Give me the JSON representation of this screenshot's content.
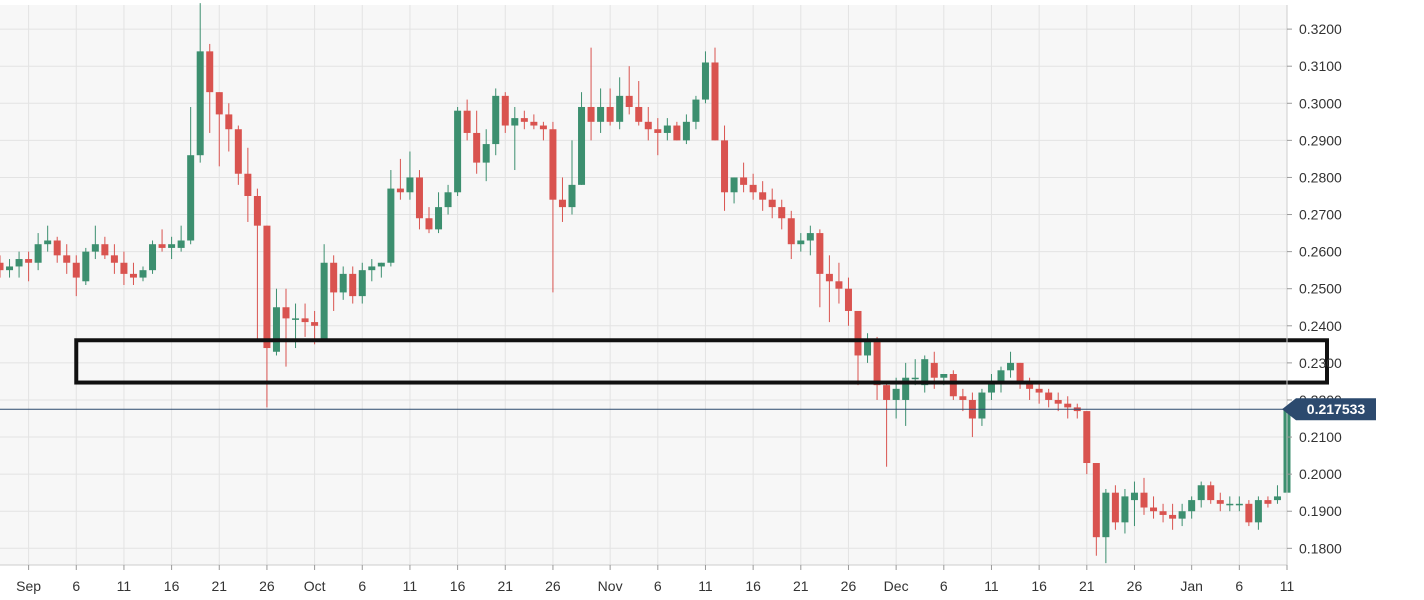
{
  "chart_data": {
    "type": "candlestick",
    "title": "",
    "xlabel": "",
    "ylabel": "",
    "ylim": [
      0.1755,
      0.3265
    ],
    "xlim": [
      "2019-08-29",
      "2020-01-11"
    ],
    "grid": true,
    "y_axis_position": "right",
    "y_ticks": [
      "0.3200",
      "0.3100",
      "0.3000",
      "0.2900",
      "0.2800",
      "0.2700",
      "0.2600",
      "0.2500",
      "0.2400",
      "0.2300",
      "0.2200",
      "0.2100",
      "0.2000",
      "0.1900",
      "0.1800"
    ],
    "x_ticks": [
      {
        "date": "2019-09-01",
        "label": "Sep"
      },
      {
        "date": "2019-09-06",
        "label": "6"
      },
      {
        "date": "2019-09-11",
        "label": "11"
      },
      {
        "date": "2019-09-16",
        "label": "16"
      },
      {
        "date": "2019-09-21",
        "label": "21"
      },
      {
        "date": "2019-09-26",
        "label": "26"
      },
      {
        "date": "2019-10-01",
        "label": "Oct"
      },
      {
        "date": "2019-10-06",
        "label": "6"
      },
      {
        "date": "2019-10-11",
        "label": "11"
      },
      {
        "date": "2019-10-16",
        "label": "16"
      },
      {
        "date": "2019-10-21",
        "label": "21"
      },
      {
        "date": "2019-10-26",
        "label": "26"
      },
      {
        "date": "2019-11-01",
        "label": "Nov"
      },
      {
        "date": "2019-11-06",
        "label": "6"
      },
      {
        "date": "2019-11-11",
        "label": "11"
      },
      {
        "date": "2019-11-16",
        "label": "16"
      },
      {
        "date": "2019-11-21",
        "label": "21"
      },
      {
        "date": "2019-11-26",
        "label": "26"
      },
      {
        "date": "2019-12-01",
        "label": "Dec"
      },
      {
        "date": "2019-12-06",
        "label": "6"
      },
      {
        "date": "2019-12-11",
        "label": "11"
      },
      {
        "date": "2019-12-16",
        "label": "16"
      },
      {
        "date": "2019-12-21",
        "label": "21"
      },
      {
        "date": "2019-12-26",
        "label": "26"
      },
      {
        "date": "2020-01-01",
        "label": "Jan"
      },
      {
        "date": "2020-01-06",
        "label": "6"
      },
      {
        "date": "2020-01-11",
        "label": "11"
      }
    ],
    "start_date": "2019-08-29",
    "colors": {
      "up": "#3c8f6f",
      "down": "#d9534f",
      "current_line": "#2c4a6e",
      "tag_bg": "#2c4a6e",
      "zone": "#111111",
      "grid": "#e3e3e3",
      "plot_bg": "#f7f7f7"
    },
    "current_price": {
      "value": 0.2175,
      "label": "0.217533"
    },
    "zone": {
      "x_start": "2019-09-06",
      "y_low": 0.2247,
      "y_high": 0.2361
    },
    "candles": [
      [
        0.257,
        0.259,
        0.253,
        0.255
      ],
      [
        0.255,
        0.258,
        0.253,
        0.256
      ],
      [
        0.256,
        0.26,
        0.253,
        0.258
      ],
      [
        0.258,
        0.26,
        0.252,
        0.257
      ],
      [
        0.257,
        0.265,
        0.255,
        0.262
      ],
      [
        0.262,
        0.267,
        0.26,
        0.263
      ],
      [
        0.263,
        0.264,
        0.257,
        0.259
      ],
      [
        0.259,
        0.262,
        0.254,
        0.257
      ],
      [
        0.257,
        0.259,
        0.248,
        0.253
      ],
      [
        0.252,
        0.261,
        0.251,
        0.26
      ],
      [
        0.26,
        0.267,
        0.258,
        0.262
      ],
      [
        0.262,
        0.264,
        0.258,
        0.259
      ],
      [
        0.259,
        0.262,
        0.254,
        0.257
      ],
      [
        0.257,
        0.26,
        0.251,
        0.254
      ],
      [
        0.254,
        0.257,
        0.251,
        0.253
      ],
      [
        0.253,
        0.256,
        0.252,
        0.255
      ],
      [
        0.255,
        0.263,
        0.254,
        0.262
      ],
      [
        0.262,
        0.266,
        0.26,
        0.261
      ],
      [
        0.261,
        0.264,
        0.258,
        0.262
      ],
      [
        0.261,
        0.267,
        0.26,
        0.263
      ],
      [
        0.263,
        0.299,
        0.262,
        0.286
      ],
      [
        0.286,
        0.327,
        0.284,
        0.314
      ],
      [
        0.314,
        0.316,
        0.292,
        0.303
      ],
      [
        0.303,
        0.303,
        0.283,
        0.297
      ],
      [
        0.297,
        0.3,
        0.287,
        0.293
      ],
      [
        0.293,
        0.294,
        0.278,
        0.281
      ],
      [
        0.281,
        0.288,
        0.268,
        0.275
      ],
      [
        0.275,
        0.277,
        0.236,
        0.267
      ],
      [
        0.267,
        0.267,
        0.218,
        0.234
      ],
      [
        0.233,
        0.25,
        0.232,
        0.245
      ],
      [
        0.245,
        0.25,
        0.229,
        0.242
      ],
      [
        0.242,
        0.246,
        0.234,
        0.242
      ],
      [
        0.242,
        0.246,
        0.237,
        0.241
      ],
      [
        0.241,
        0.244,
        0.235,
        0.24
      ],
      [
        0.236,
        0.262,
        0.236,
        0.257
      ],
      [
        0.257,
        0.259,
        0.244,
        0.249
      ],
      [
        0.249,
        0.256,
        0.247,
        0.254
      ],
      [
        0.254,
        0.256,
        0.246,
        0.248
      ],
      [
        0.248,
        0.257,
        0.246,
        0.255
      ],
      [
        0.255,
        0.258,
        0.252,
        0.256
      ],
      [
        0.256,
        0.257,
        0.253,
        0.257
      ],
      [
        0.257,
        0.282,
        0.256,
        0.277
      ],
      [
        0.277,
        0.285,
        0.274,
        0.276
      ],
      [
        0.276,
        0.287,
        0.274,
        0.28
      ],
      [
        0.28,
        0.282,
        0.266,
        0.269
      ],
      [
        0.269,
        0.272,
        0.265,
        0.266
      ],
      [
        0.266,
        0.276,
        0.265,
        0.272
      ],
      [
        0.272,
        0.278,
        0.27,
        0.276
      ],
      [
        0.276,
        0.299,
        0.275,
        0.298
      ],
      [
        0.298,
        0.301,
        0.29,
        0.292
      ],
      [
        0.292,
        0.298,
        0.281,
        0.284
      ],
      [
        0.284,
        0.293,
        0.279,
        0.289
      ],
      [
        0.289,
        0.304,
        0.286,
        0.302
      ],
      [
        0.302,
        0.303,
        0.292,
        0.294
      ],
      [
        0.294,
        0.299,
        0.282,
        0.296
      ],
      [
        0.296,
        0.298,
        0.293,
        0.295
      ],
      [
        0.295,
        0.297,
        0.293,
        0.294
      ],
      [
        0.294,
        0.295,
        0.29,
        0.293
      ],
      [
        0.293,
        0.295,
        0.249,
        0.274
      ],
      [
        0.274,
        0.28,
        0.268,
        0.272
      ],
      [
        0.272,
        0.29,
        0.27,
        0.278
      ],
      [
        0.278,
        0.303,
        0.278,
        0.299
      ],
      [
        0.299,
        0.315,
        0.29,
        0.295
      ],
      [
        0.295,
        0.304,
        0.292,
        0.299
      ],
      [
        0.299,
        0.304,
        0.294,
        0.295
      ],
      [
        0.295,
        0.307,
        0.293,
        0.302
      ],
      [
        0.302,
        0.31,
        0.297,
        0.299
      ],
      [
        0.299,
        0.306,
        0.294,
        0.295
      ],
      [
        0.295,
        0.299,
        0.29,
        0.293
      ],
      [
        0.293,
        0.296,
        0.286,
        0.292
      ],
      [
        0.292,
        0.296,
        0.29,
        0.294
      ],
      [
        0.294,
        0.295,
        0.29,
        0.29
      ],
      [
        0.29,
        0.297,
        0.289,
        0.295
      ],
      [
        0.295,
        0.302,
        0.293,
        0.301
      ],
      [
        0.301,
        0.314,
        0.3,
        0.311
      ],
      [
        0.311,
        0.315,
        0.29,
        0.29
      ],
      [
        0.29,
        0.294,
        0.271,
        0.276
      ],
      [
        0.276,
        0.28,
        0.273,
        0.28
      ],
      [
        0.28,
        0.284,
        0.276,
        0.278
      ],
      [
        0.278,
        0.281,
        0.274,
        0.276
      ],
      [
        0.276,
        0.279,
        0.271,
        0.274
      ],
      [
        0.274,
        0.277,
        0.269,
        0.272
      ],
      [
        0.272,
        0.274,
        0.266,
        0.269
      ],
      [
        0.269,
        0.271,
        0.258,
        0.262
      ],
      [
        0.262,
        0.265,
        0.26,
        0.263
      ],
      [
        0.263,
        0.267,
        0.259,
        0.265
      ],
      [
        0.265,
        0.266,
        0.245,
        0.254
      ],
      [
        0.254,
        0.259,
        0.241,
        0.252
      ],
      [
        0.252,
        0.257,
        0.246,
        0.25
      ],
      [
        0.25,
        0.253,
        0.24,
        0.244
      ],
      [
        0.244,
        0.244,
        0.224,
        0.232
      ],
      [
        0.232,
        0.238,
        0.23,
        0.236
      ],
      [
        0.236,
        0.237,
        0.22,
        0.224
      ],
      [
        0.224,
        0.225,
        0.202,
        0.22
      ],
      [
        0.22,
        0.226,
        0.215,
        0.223
      ],
      [
        0.22,
        0.23,
        0.213,
        0.226
      ],
      [
        0.226,
        0.231,
        0.224,
        0.226
      ],
      [
        0.224,
        0.232,
        0.222,
        0.231
      ],
      [
        0.23,
        0.233,
        0.223,
        0.226
      ],
      [
        0.226,
        0.227,
        0.224,
        0.227
      ],
      [
        0.227,
        0.228,
        0.22,
        0.221
      ],
      [
        0.221,
        0.223,
        0.217,
        0.22
      ],
      [
        0.22,
        0.222,
        0.21,
        0.215
      ],
      [
        0.215,
        0.223,
        0.213,
        0.222
      ],
      [
        0.222,
        0.227,
        0.22,
        0.225
      ],
      [
        0.225,
        0.229,
        0.222,
        0.228
      ],
      [
        0.228,
        0.233,
        0.226,
        0.23
      ],
      [
        0.23,
        0.23,
        0.223,
        0.225
      ],
      [
        0.225,
        0.226,
        0.22,
        0.223
      ],
      [
        0.223,
        0.225,
        0.219,
        0.222
      ],
      [
        0.222,
        0.223,
        0.218,
        0.22
      ],
      [
        0.22,
        0.222,
        0.217,
        0.219
      ],
      [
        0.219,
        0.221,
        0.215,
        0.218
      ],
      [
        0.218,
        0.219,
        0.215,
        0.217
      ],
      [
        0.217,
        0.217,
        0.2,
        0.203
      ],
      [
        0.203,
        0.203,
        0.178,
        0.183
      ],
      [
        0.183,
        0.196,
        0.176,
        0.195
      ],
      [
        0.195,
        0.197,
        0.185,
        0.187
      ],
      [
        0.187,
        0.196,
        0.184,
        0.194
      ],
      [
        0.193,
        0.198,
        0.186,
        0.195
      ],
      [
        0.195,
        0.199,
        0.189,
        0.191
      ],
      [
        0.191,
        0.194,
        0.188,
        0.19
      ],
      [
        0.19,
        0.192,
        0.187,
        0.189
      ],
      [
        0.189,
        0.192,
        0.185,
        0.188
      ],
      [
        0.188,
        0.192,
        0.186,
        0.19
      ],
      [
        0.19,
        0.194,
        0.188,
        0.193
      ],
      [
        0.193,
        0.198,
        0.191,
        0.197
      ],
      [
        0.197,
        0.198,
        0.192,
        0.193
      ],
      [
        0.193,
        0.195,
        0.19,
        0.192
      ],
      [
        0.192,
        0.194,
        0.19,
        0.192
      ],
      [
        0.192,
        0.194,
        0.19,
        0.192
      ],
      [
        0.192,
        0.193,
        0.186,
        0.187
      ],
      [
        0.187,
        0.194,
        0.185,
        0.193
      ],
      [
        0.193,
        0.194,
        0.191,
        0.192
      ],
      [
        0.193,
        0.197,
        0.192,
        0.194
      ],
      [
        0.195,
        0.218,
        0.194,
        0.2175
      ]
    ]
  }
}
